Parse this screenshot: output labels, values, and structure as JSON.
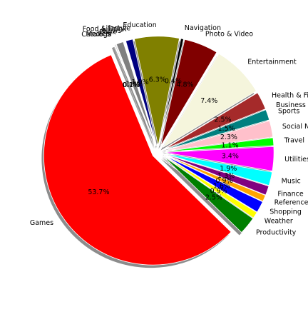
{
  "chart_data": {
    "type": "pie",
    "title": "",
    "start_angle_deg": 112.5,
    "direction": "counterclockwise",
    "shadow": true,
    "exploded": true,
    "slices": [
      {
        "label": "Games",
        "value": 53.7,
        "pct_text": "53.7%",
        "color": "#ff0000"
      },
      {
        "label": "Productivity",
        "value": 2.5,
        "pct_text": "2.5%",
        "color": "#007f00"
      },
      {
        "label": "Weather",
        "value": 0.9,
        "pct_text": "0.9%",
        "color": "#ffff00"
      },
      {
        "label": "Shopping",
        "value": 1.6,
        "pct_text": "1.6%",
        "color": "#0000ff"
      },
      {
        "label": "Reference",
        "value": 0.9,
        "pct_text": "0.9%",
        "color": "#ffa500"
      },
      {
        "label": "Finance",
        "value": 1.3,
        "pct_text": "1.3%",
        "color": "#800080"
      },
      {
        "label": "Music",
        "value": 1.9,
        "pct_text": "1.9%",
        "color": "#00ffff"
      },
      {
        "label": "Utilities",
        "value": 3.4,
        "pct_text": "3.4%",
        "color": "#ff00ff"
      },
      {
        "label": "Travel",
        "value": 1.1,
        "pct_text": "1.1%",
        "color": "#00ff00"
      },
      {
        "label": "Social Networking",
        "value": 2.3,
        "pct_text": "2.3%",
        "color": "#ffc0cb"
      },
      {
        "label": "Sports",
        "value": 1.5,
        "pct_text": "1.5%",
        "color": "#008080"
      },
      {
        "label": "Business",
        "value": 0.0,
        "pct_text": "",
        "color": "#e6e6fa"
      },
      {
        "label": "Health & Fitness",
        "value": 2.5,
        "pct_text": "2.5%",
        "color": "#a52a2a"
      },
      {
        "label": "Entertainment",
        "value": 7.4,
        "pct_text": "7.4%",
        "color": "#f5f5dc"
      },
      {
        "label": "Photo & Video",
        "value": 4.8,
        "pct_text": "4.8%",
        "color": "#800000"
      },
      {
        "label": "Navigation",
        "value": 0.4,
        "pct_text": "0.4%",
        "color": "#000000"
      },
      {
        "label": "Education",
        "value": 6.3,
        "pct_text": "6.3%",
        "color": "#808000"
      },
      {
        "label": "Lifestyle",
        "value": 0.0,
        "pct_text": "",
        "color": "#ffffff"
      },
      {
        "label": "Food & Drink",
        "value": 1.0,
        "pct_text": "1.0%",
        "color": "#000080"
      },
      {
        "label": "News",
        "value": 0.3,
        "pct_text": "",
        "color": "#ffffff"
      },
      {
        "label": "Book",
        "value": 1.0,
        "pct_text": "1.0%",
        "color": "#808080"
      },
      {
        "label": "Medical",
        "value": 0.1,
        "pct_text": "",
        "color": "#c0c0c0"
      },
      {
        "label": "Catalogs",
        "value": 0.1,
        "pct_text": "0.1%",
        "color": "#000000"
      },
      {
        "label": "",
        "value": 0.1,
        "pct_text": "0.1%",
        "color": "#ffffff"
      }
    ]
  }
}
